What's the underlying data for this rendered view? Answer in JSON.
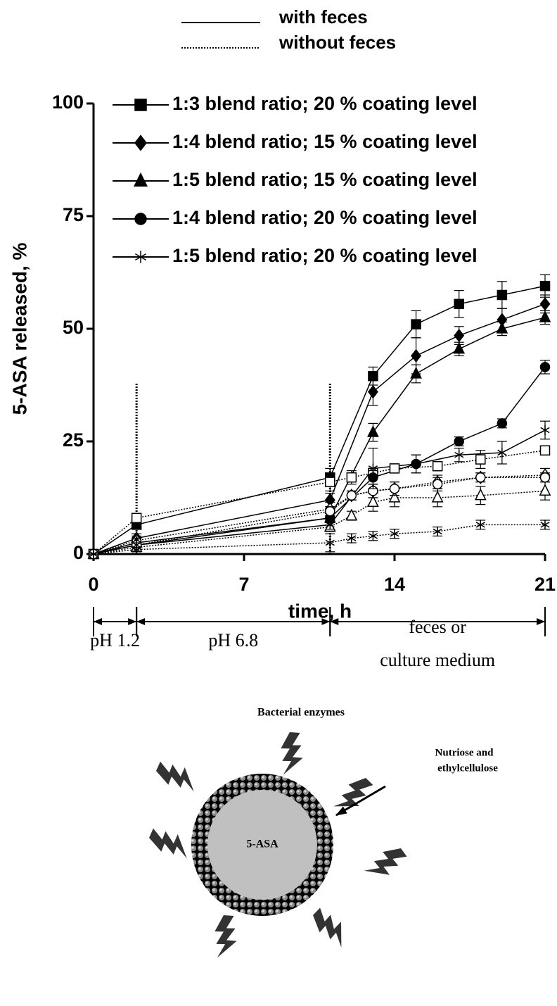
{
  "chart_data": {
    "type": "line",
    "xlabel": "time, h",
    "ylabel": "5-ASA released, %",
    "xlim": [
      0,
      21
    ],
    "ylim": [
      0,
      100
    ],
    "xticks": [
      0,
      7,
      14,
      21
    ],
    "yticks": [
      0,
      25,
      50,
      75,
      100
    ],
    "conditions": [
      {
        "name": "with feces",
        "line": "solid",
        "x": [
          0,
          2,
          11,
          13,
          15,
          17,
          19,
          21
        ]
      },
      {
        "name": "without feces",
        "line": "dotted",
        "x": [
          0,
          2,
          11,
          12,
          13,
          14,
          16,
          18,
          21
        ]
      }
    ],
    "series": [
      {
        "name": "1:3 blend ratio; 20 % coating level",
        "marker": "square",
        "color": "#000000",
        "values": [
          [
            0,
            6.5,
            17,
            39.5,
            51,
            55.5,
            57.5,
            59.5
          ],
          [
            0,
            8,
            16,
            17,
            18,
            19,
            19.5,
            21,
            23
          ]
        ],
        "errors": [
          [
            0,
            1,
            2,
            2,
            3,
            3,
            3,
            2.5
          ],
          [
            0,
            1,
            2,
            1.5,
            1,
            1,
            1,
            2,
            1
          ]
        ]
      },
      {
        "name": "1:4 blend ratio; 15 % coating level",
        "marker": "diamond",
        "color": "#000000",
        "values": [
          [
            0,
            3.5,
            12,
            36,
            44,
            48.5,
            52,
            55.5
          ],
          [
            0,
            3,
            10,
            13,
            14,
            14.5,
            16,
            17,
            17.5
          ]
        ],
        "errors": [
          [
            0,
            1,
            1.5,
            3,
            4,
            2,
            2.5,
            2
          ],
          [
            0,
            1,
            1.5,
            1,
            1.5,
            1.5,
            1.5,
            1,
            1.5
          ]
        ]
      },
      {
        "name": "1:5 blend ratio; 15 % coating level",
        "marker": "triangle",
        "color": "#000000",
        "values": [
          [
            0,
            2.5,
            8,
            27,
            40,
            45.5,
            50,
            52.5
          ],
          [
            0,
            1.5,
            6,
            8.5,
            11.5,
            12.5,
            12.5,
            13,
            14
          ]
        ],
        "errors": [
          [
            0,
            1,
            1,
            2,
            2,
            1.5,
            1.5,
            1.5
          ],
          [
            0,
            0.5,
            1,
            1,
            2,
            2,
            2,
            2,
            2
          ]
        ]
      },
      {
        "name": "1:4 blend ratio; 20 % coating level",
        "marker": "circle",
        "color": "#000000",
        "values": [
          [
            0,
            2,
            8,
            17,
            20,
            25,
            29,
            41.5
          ],
          [
            0,
            2,
            9.5,
            13,
            14,
            14.5,
            15.5,
            17,
            17
          ]
        ],
        "errors": [
          [
            0,
            0.5,
            1,
            1.5,
            2,
            1,
            1,
            1.5
          ],
          [
            0,
            0.5,
            1,
            1,
            1.5,
            1.5,
            1.5,
            1,
            1
          ]
        ]
      },
      {
        "name": "1:5 blend ratio; 20 % coating level",
        "marker": "star",
        "color": "#000000",
        "values": [
          [
            0,
            2,
            6.5,
            19,
            20,
            22,
            22.5,
            27.5
          ],
          [
            0,
            1,
            2.5,
            3.5,
            4,
            4.5,
            5,
            6.5,
            6.5
          ]
        ],
        "errors": [
          [
            0,
            0.5,
            1,
            4.5,
            2,
            1.5,
            2.5,
            2
          ],
          [
            0,
            0.5,
            2,
            1,
            1,
            1,
            1,
            1,
            1
          ]
        ]
      }
    ],
    "phases": [
      {
        "label_lines": [
          "pH 1.2"
        ],
        "start": 0,
        "end": 2
      },
      {
        "label_lines": [
          "pH 6.8"
        ],
        "start": 2,
        "end": 11
      },
      {
        "label_lines": [
          "feces or",
          "culture medium"
        ],
        "start": 11,
        "end": 21
      }
    ]
  },
  "diagram": {
    "title": "Bacterial enzymes",
    "coating_label_lines": [
      "Nutriose and",
      "ethylcellulose"
    ],
    "core_label": "5-ASA"
  }
}
